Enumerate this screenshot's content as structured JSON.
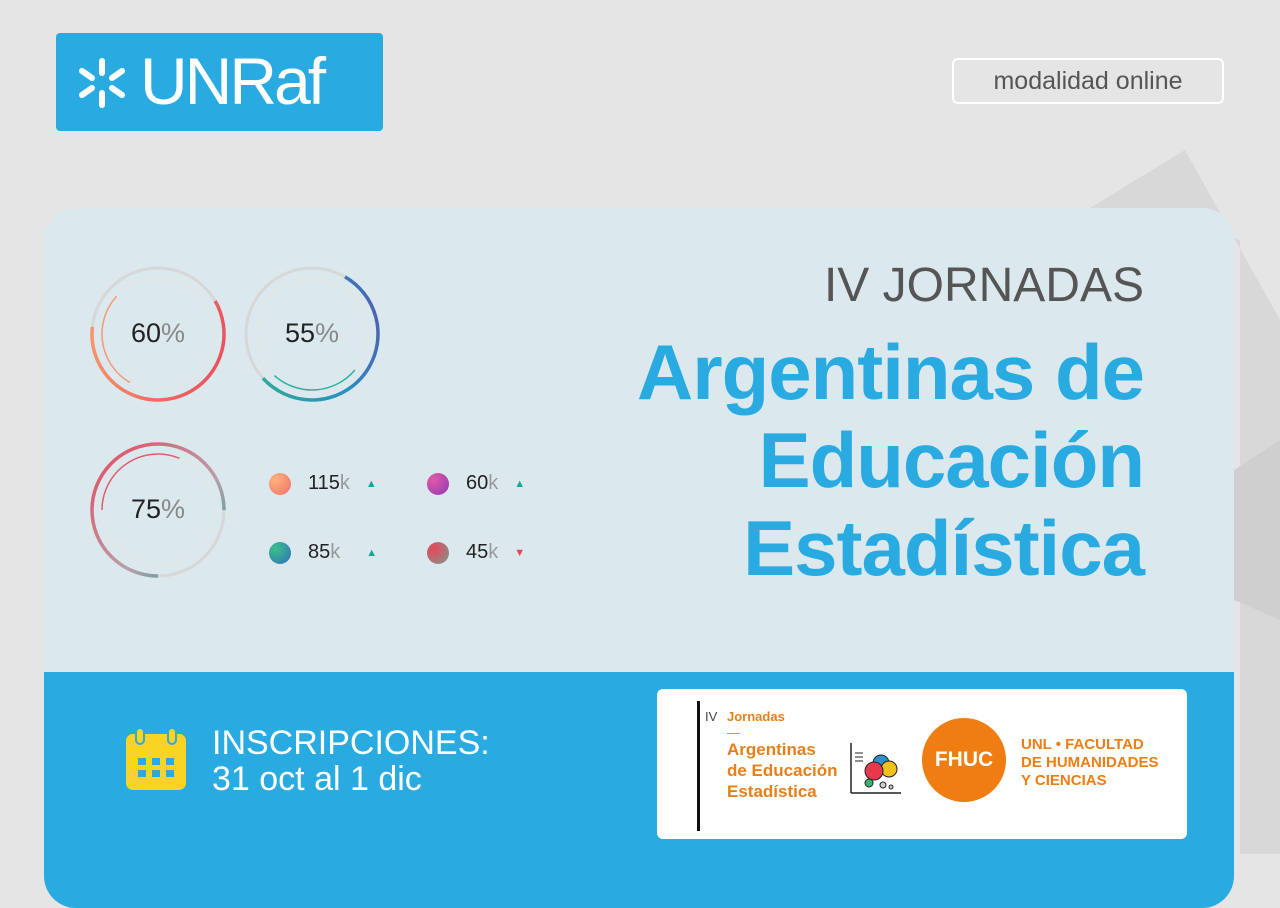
{
  "header": {
    "logo_text": "UNRaf",
    "modality": "modalidad online"
  },
  "rings": [
    {
      "value": "60",
      "unit": "%",
      "fraction": 0.6
    },
    {
      "value": "55",
      "unit": "%",
      "fraction": 0.55
    },
    {
      "value": "75",
      "unit": "%",
      "fraction": 0.75
    }
  ],
  "stats": [
    {
      "value": "115",
      "unit": "k",
      "trend": "up"
    },
    {
      "value": "60",
      "unit": "k",
      "trend": "up"
    },
    {
      "value": "85",
      "unit": "k",
      "trend": "up"
    },
    {
      "value": "45",
      "unit": "k",
      "trend": "down"
    }
  ],
  "title": {
    "small": "IV JORNADAS",
    "line1": "Argentinas de",
    "line2": "Educación",
    "line3": "Estadística"
  },
  "registration": {
    "label": "INSCRIPCIONES:",
    "dates": "31 oct al 1 dic"
  },
  "partner": {
    "iv": "IV",
    "jornadas": "Jornadas",
    "dash": "—",
    "line1": "Argentinas",
    "line2": "de Educación",
    "line3": "Estadística",
    "fhuc": "FHUC",
    "unl1": "UNL • FACULTAD",
    "unl2": "DE HUMANIDADES",
    "unl3": "Y CIENCIAS"
  },
  "colors": {
    "brand_blue": "#29abe2",
    "orange": "#ef7d12",
    "trend_up": "#14a89b",
    "trend_down": "#e8455a"
  }
}
